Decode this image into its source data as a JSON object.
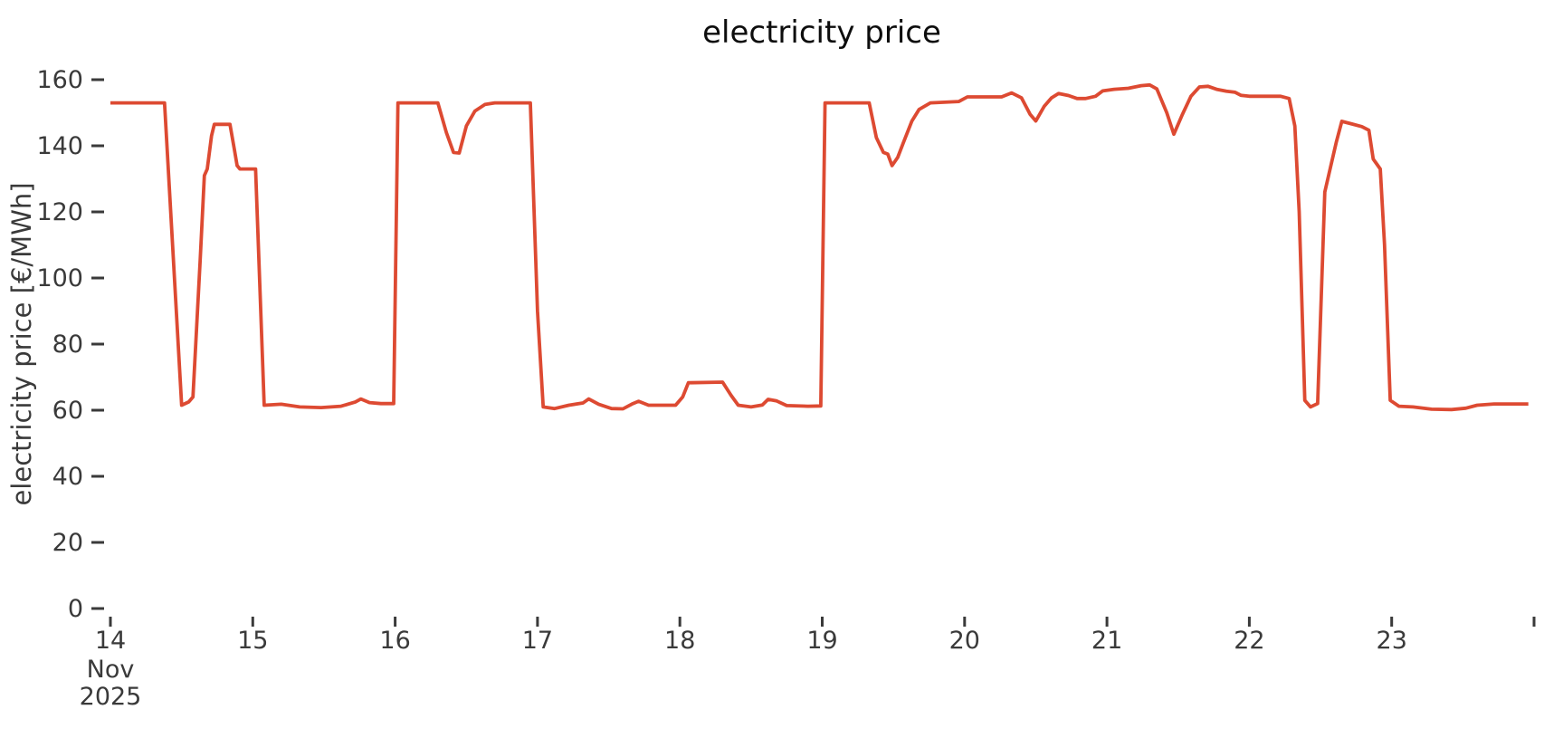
{
  "title": "electricity price",
  "colors": {
    "line": "#dd4a32",
    "tick_text": "#3a3a3a",
    "title_text": "#0d0d0d",
    "background": "#ffffff"
  },
  "chart_data": {
    "type": "line",
    "title": "electricity price",
    "xlabel": "",
    "ylabel": "electricity price [€/MWh]",
    "x_unit": "day of November 2025 (fractional day = time of day)",
    "grid": false,
    "legend_position": "none",
    "line_color": "#dd4a32",
    "ylim": [
      0,
      166
    ],
    "xlim": [
      14,
      24.05
    ],
    "y_ticks": [
      0,
      20,
      40,
      60,
      80,
      100,
      120,
      140,
      160
    ],
    "x_tick_days": [
      14,
      15,
      16,
      17,
      18,
      19,
      20,
      21,
      22,
      23,
      24
    ],
    "x_tick_labels": [
      "14",
      "15",
      "16",
      "17",
      "18",
      "19",
      "20",
      "21",
      "22",
      "23",
      ""
    ],
    "x_first_tick_sublabels": [
      "Nov",
      "2025"
    ],
    "series_name": "electricity price",
    "x": [
      14.0,
      14.38,
      14.5,
      14.55,
      14.58,
      14.63,
      14.66,
      14.68,
      14.71,
      14.73,
      14.84,
      14.87,
      14.89,
      14.91,
      15.02,
      15.08,
      15.2,
      15.33,
      15.48,
      15.62,
      15.72,
      15.76,
      15.82,
      15.9,
      15.99,
      16.02,
      16.3,
      16.36,
      16.41,
      16.45,
      16.5,
      16.56,
      16.63,
      16.7,
      16.95,
      17.0,
      17.04,
      17.12,
      17.22,
      17.32,
      17.36,
      17.43,
      17.52,
      17.6,
      17.67,
      17.71,
      17.78,
      17.97,
      18.02,
      18.06,
      18.3,
      18.36,
      18.41,
      18.5,
      18.58,
      18.62,
      18.68,
      18.75,
      18.9,
      18.99,
      19.02,
      19.33,
      19.38,
      19.43,
      19.46,
      19.49,
      19.53,
      19.57,
      19.63,
      19.68,
      19.76,
      19.96,
      20.02,
      20.26,
      20.33,
      20.4,
      20.46,
      20.5,
      20.56,
      20.61,
      20.66,
      20.73,
      20.79,
      20.85,
      20.92,
      20.97,
      21.05,
      21.15,
      21.24,
      21.3,
      21.35,
      21.42,
      21.47,
      21.53,
      21.59,
      21.65,
      21.71,
      21.77,
      21.84,
      21.9,
      21.94,
      22.0,
      22.22,
      22.28,
      22.32,
      22.35,
      22.39,
      22.43,
      22.48,
      22.53,
      22.57,
      22.61,
      22.65,
      22.72,
      22.79,
      22.84,
      22.87,
      22.92,
      22.95,
      22.99,
      23.05,
      23.15,
      23.28,
      23.42,
      23.52,
      23.6,
      23.72,
      23.85,
      23.96
    ],
    "y": [
      153,
      153,
      61.5,
      62.5,
      64,
      105,
      131,
      133,
      143,
      146.5,
      146.5,
      139,
      134,
      133,
      133,
      61.5,
      61.8,
      61.0,
      60.8,
      61.2,
      62.5,
      63.4,
      62.3,
      62.0,
      62.0,
      153,
      153,
      144,
      138,
      137.8,
      146,
      150.5,
      152.5,
      153,
      153,
      90,
      61.0,
      60.5,
      61.5,
      62.2,
      63.4,
      61.8,
      60.5,
      60.4,
      62.0,
      62.7,
      61.5,
      61.5,
      64,
      68.3,
      68.5,
      64.5,
      61.5,
      61.0,
      61.6,
      63.3,
      62.8,
      61.4,
      61.2,
      61.3,
      153,
      153,
      142.5,
      138,
      137.5,
      134,
      136.5,
      141,
      147.5,
      151,
      153,
      153.4,
      154.8,
      154.8,
      156,
      154.5,
      149.5,
      147.5,
      152,
      154.5,
      155.8,
      155.2,
      154.3,
      154.3,
      155.0,
      156.6,
      157.1,
      157.4,
      158.2,
      158.4,
      157.2,
      150,
      143.5,
      149.5,
      155,
      157.8,
      158,
      157.1,
      156.5,
      156.2,
      155.3,
      155,
      155,
      154.3,
      146,
      120,
      63,
      61,
      62,
      126,
      133.5,
      141,
      147.4,
      146.6,
      145.8,
      144.7,
      136,
      133,
      110,
      63,
      61.2,
      61.0,
      60.3,
      60.2,
      60.6,
      61.5,
      61.9,
      61.9,
      61.9
    ]
  }
}
